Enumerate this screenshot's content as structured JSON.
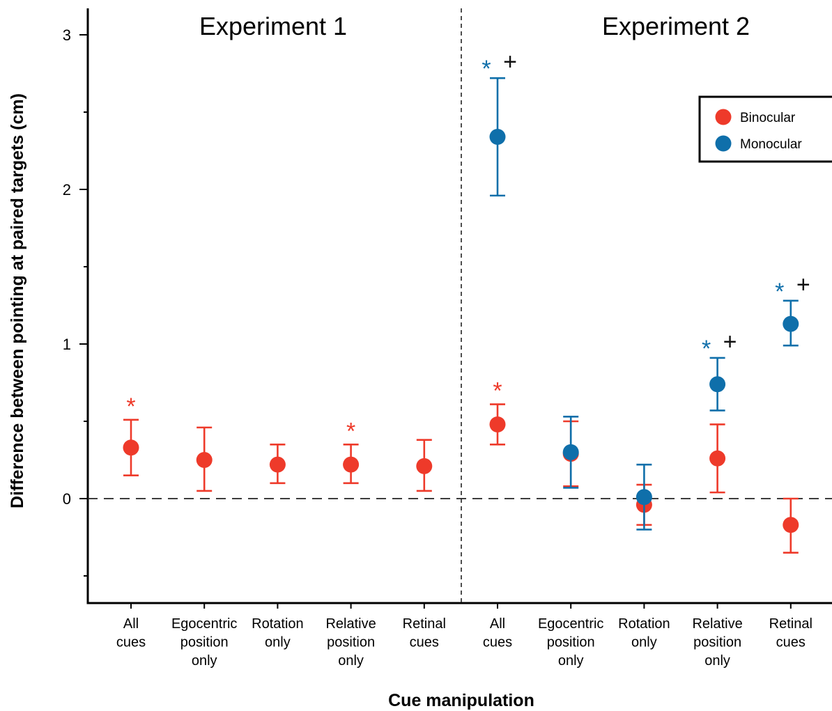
{
  "chart_data": {
    "type": "scatter",
    "ylabel": "Difference between pointing at paired targets (cm)",
    "xlabel": "Cue manipulation",
    "ylim": [
      -0.65,
      3.2
    ],
    "yticks": [
      0,
      1,
      2,
      3
    ],
    "ytick_labels": [
      "0",
      "1",
      "2",
      "3"
    ],
    "yminor_ticks": [
      -0.5,
      0.5,
      1.5,
      2.5
    ],
    "reference_line_y": 0,
    "legend_position": "top-right",
    "grid": false,
    "colors": {
      "binocular": "#ee3a2a",
      "monocular": "#0f6faa",
      "plus": "#111111"
    },
    "panels": [
      {
        "title": "Experiment 1",
        "categories": [
          "All\ncues",
          "Egocentric\nposition\nonly",
          "Rotation\nonly",
          "Relative\nposition\nonly",
          "Retinal\ncues"
        ]
      },
      {
        "title": "Experiment 2",
        "categories": [
          "All\ncues",
          "Egocentric\nposition\nonly",
          "Rotation\nonly",
          "Relative\nposition\nonly",
          "Retinal\ncues"
        ]
      }
    ],
    "series": [
      {
        "name": "Binocular",
        "color": "#ee3a2a",
        "points": [
          {
            "x": 0,
            "y": 0.33,
            "low": 0.15,
            "high": 0.51,
            "star": true
          },
          {
            "x": 1,
            "y": 0.25,
            "low": 0.05,
            "high": 0.46,
            "star": false
          },
          {
            "x": 2,
            "y": 0.22,
            "low": 0.1,
            "high": 0.35,
            "star": false
          },
          {
            "x": 3,
            "y": 0.22,
            "low": 0.1,
            "high": 0.35,
            "star": true
          },
          {
            "x": 4,
            "y": 0.21,
            "low": 0.05,
            "high": 0.38,
            "star": false
          },
          {
            "x": 5,
            "y": 0.48,
            "low": 0.35,
            "high": 0.61,
            "star": true
          },
          {
            "x": 6,
            "y": 0.29,
            "low": 0.08,
            "high": 0.5,
            "star": false
          },
          {
            "x": 7,
            "y": -0.04,
            "low": -0.17,
            "high": 0.09,
            "star": false
          },
          {
            "x": 8,
            "y": 0.26,
            "low": 0.04,
            "high": 0.48,
            "star": false
          },
          {
            "x": 9,
            "y": -0.17,
            "low": -0.35,
            "high": 0.0,
            "star": false
          }
        ]
      },
      {
        "name": "Monocular",
        "color": "#0f6faa",
        "points": [
          {
            "x": 5,
            "y": 2.34,
            "low": 1.96,
            "high": 2.72,
            "star": true,
            "plus": true
          },
          {
            "x": 6,
            "y": 0.3,
            "low": 0.07,
            "high": 0.53,
            "star": false,
            "plus": false
          },
          {
            "x": 7,
            "y": 0.01,
            "low": -0.2,
            "high": 0.22,
            "star": false,
            "plus": false
          },
          {
            "x": 8,
            "y": 0.74,
            "low": 0.57,
            "high": 0.91,
            "star": true,
            "plus": true
          },
          {
            "x": 9,
            "y": 1.13,
            "low": 0.99,
            "high": 1.28,
            "star": true,
            "plus": true
          }
        ]
      }
    ],
    "significance_symbols": {
      "star": "*",
      "plus": "+"
    }
  }
}
